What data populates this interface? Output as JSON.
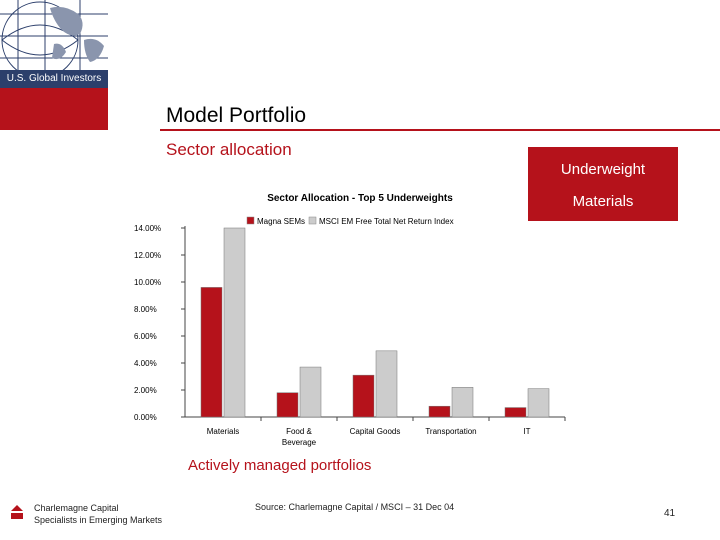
{
  "header": {
    "logo_text": "U.S. Global Investors",
    "title": "Model Portfolio",
    "subtitle": "Sector allocation"
  },
  "callout": {
    "line1": "Underweight",
    "line2": "Materials"
  },
  "caption": "Actively managed portfolios",
  "footer": {
    "company_line1": "Charlemagne Capital",
    "company_line2": "Specialists in Emerging Markets",
    "source": "Source: Charlemagne Capital / MSCI – 31 Dec 04",
    "page_number": "41"
  },
  "colors": {
    "accent": "#b5121b",
    "series1": "#b5121b",
    "series2": "#cccccc"
  },
  "chart_data": {
    "type": "bar",
    "title": "Sector Allocation - Top 5 Underweights",
    "categories": [
      "Materials",
      "Food & Beverage",
      "Capital Goods",
      "Transportation",
      "IT"
    ],
    "category_lines": [
      [
        "Materials"
      ],
      [
        "Food &",
        "Beverage"
      ],
      [
        "Capital Goods"
      ],
      [
        "Transportation"
      ],
      [
        "IT"
      ]
    ],
    "series": [
      {
        "name": "Magna SEMs",
        "values": [
          9.6,
          1.8,
          3.1,
          0.8,
          0.7
        ]
      },
      {
        "name": "MSCI EM Free Total Net Return Index",
        "values": [
          14.0,
          3.7,
          4.9,
          2.2,
          2.1
        ]
      }
    ],
    "ylim": [
      0,
      14
    ],
    "yticks": [
      "0.00%",
      "2.00%",
      "4.00%",
      "6.00%",
      "8.00%",
      "10.00%",
      "12.00%",
      "14.00%"
    ],
    "legend": "top"
  }
}
